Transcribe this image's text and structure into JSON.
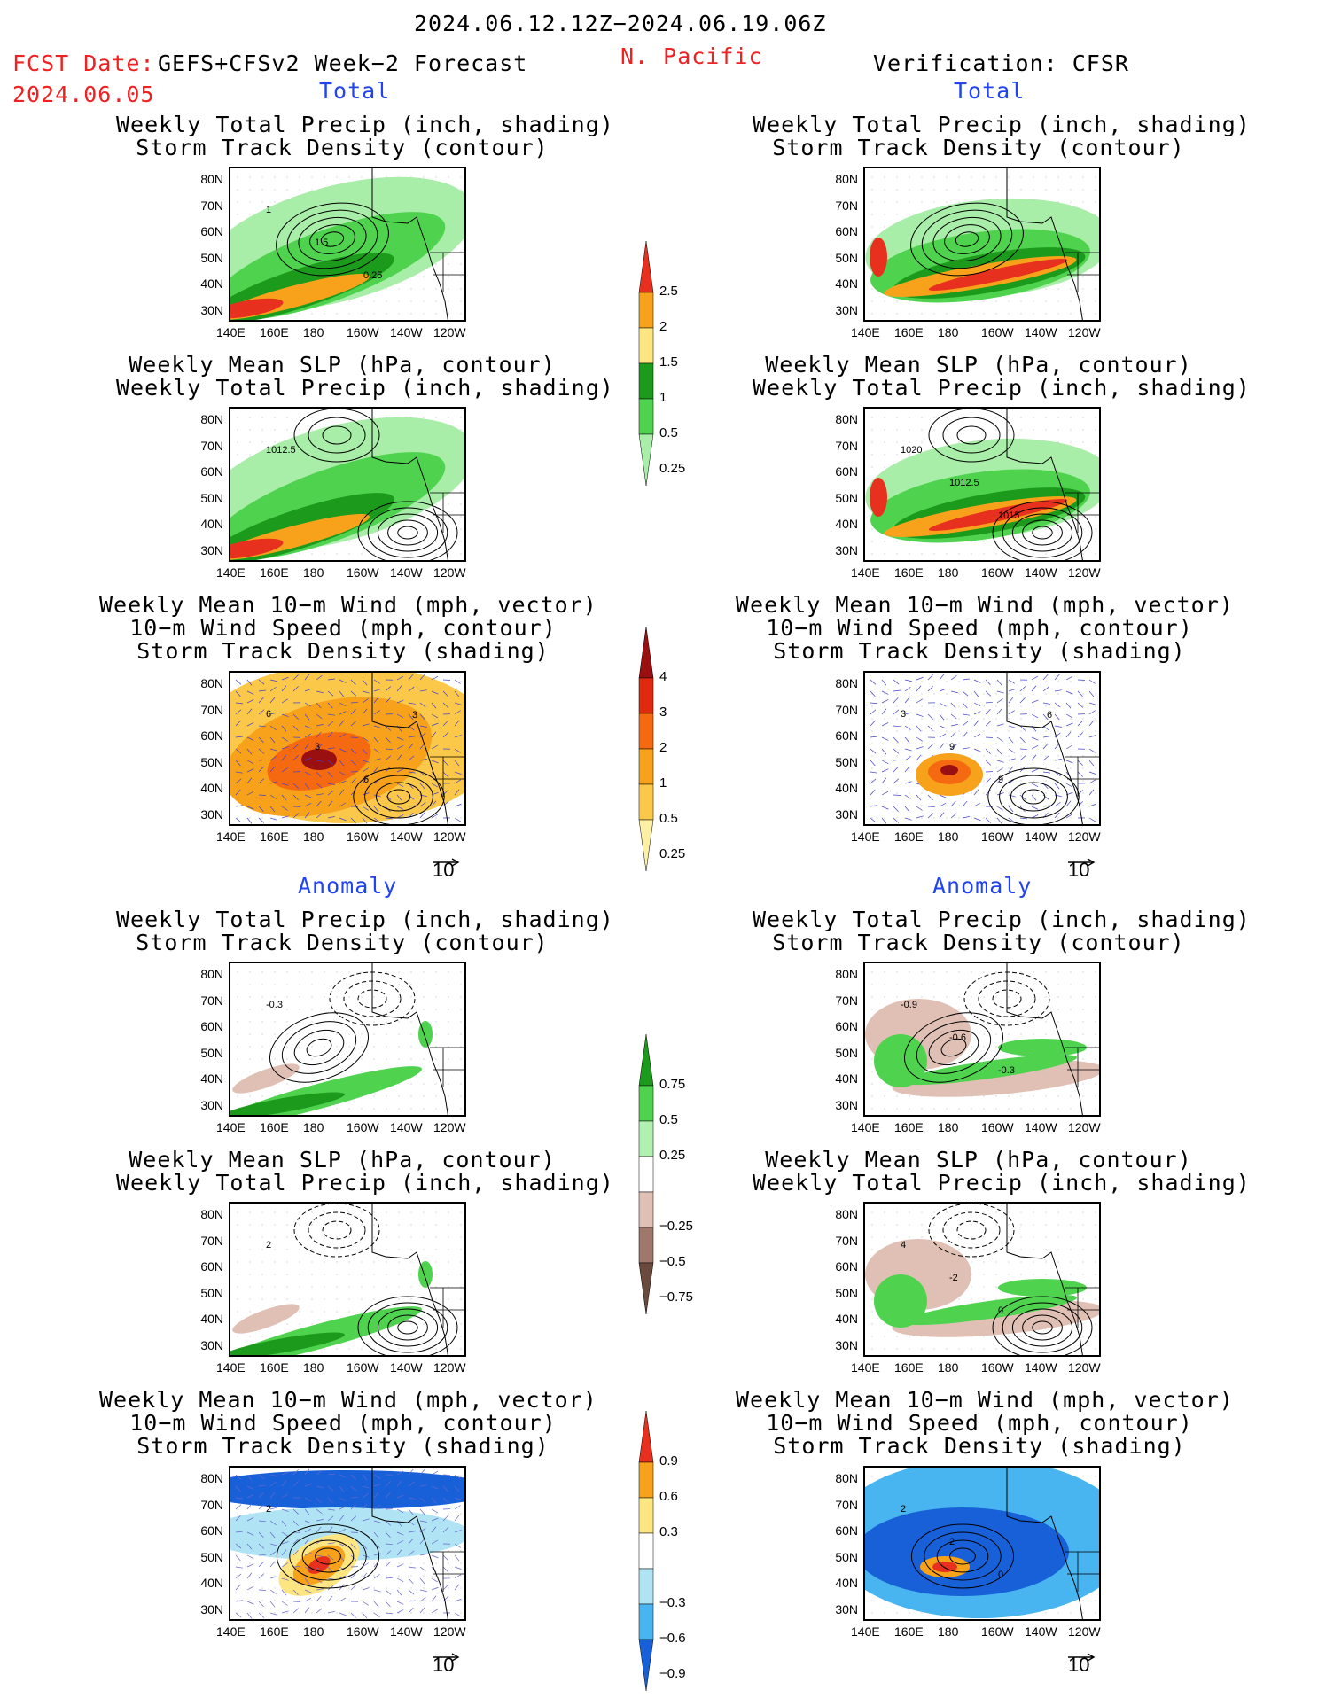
{
  "header": {
    "period": "2024.06.12.12Z−2024.06.19.06Z",
    "fcst_label": "FCST Date:",
    "fcst_date": "2024.06.05",
    "model": "GEFS+CFSv2 Week−2 Forecast",
    "region": "N. Pacific",
    "verification": "Verification: CFSR"
  },
  "sections": {
    "total": "Total",
    "anomaly": "Anomaly"
  },
  "titles": {
    "precip_track": [
      "Weekly Total Precip (inch, shading)",
      "Storm Track Density (contour)"
    ],
    "slp_precip": [
      "Weekly Mean SLP (hPa, contour)",
      "Weekly Total Precip (inch, shading)"
    ],
    "wind_track": [
      "Weekly Mean 10−m Wind (mph, vector)",
      "10−m Wind Speed (mph, contour)",
      "Storm Track Density (shading)"
    ]
  },
  "axes": {
    "lat_labels": [
      "80N",
      "70N",
      "60N",
      "50N",
      "40N",
      "30N"
    ],
    "lon_labels": [
      "140E",
      "160E",
      "180",
      "160W",
      "140W",
      "120W"
    ]
  },
  "vector_scale": "10",
  "contour_labels": {
    "fc_precip_track": [
      "1",
      "1.5",
      "0.25"
    ],
    "fc_slp": [
      "1012.5"
    ],
    "fc_wind_total": [
      "6",
      "3",
      "6",
      "3"
    ],
    "obs_slp": [
      "1020",
      "1012.5",
      "1015"
    ],
    "obs_wind_total": [
      "3",
      "9",
      "9",
      "6"
    ],
    "fc_precip_anom": [
      "-0.3"
    ],
    "obs_precip_anom": [
      "-0.9",
      "-0.6",
      "-0.3"
    ],
    "fc_slp_anom": [
      "2"
    ],
    "obs_slp_anom": [
      "4",
      "-2",
      "0"
    ],
    "fc_wind_anom": [
      "2"
    ],
    "obs_wind_anom": [
      "2",
      "2",
      "0"
    ]
  },
  "colorbars": {
    "precip": {
      "labels": [
        "2.5",
        "2",
        "1.5",
        "1",
        "0.5",
        "0.25"
      ],
      "colors": [
        "#e8301e",
        "#f7a21a",
        "#fde582",
        "#1c9a1c",
        "#4fd34f",
        "#a8eda8"
      ]
    },
    "storm_density": {
      "labels": [
        "4",
        "3",
        "2",
        "1",
        "0.5",
        "0.25"
      ],
      "colors": [
        "#9a1010",
        "#e02a10",
        "#f56a10",
        "#f7a21a",
        "#fbc84a",
        "#fdf0a4"
      ]
    },
    "precip_anom": {
      "labels": [
        "0.75",
        "0.5",
        "0.25",
        "−0.25",
        "−0.5",
        "−0.75"
      ],
      "colors": [
        "#1c9a1c",
        "#4fd34f",
        "#b0f0b0",
        "#ffffff",
        "#e0c0b4",
        "#a0786a",
        "#6a4a3c"
      ]
    },
    "storm_anom": {
      "labels": [
        "0.9",
        "0.6",
        "0.3",
        "−0.3",
        "−0.6",
        "−0.9"
      ],
      "colors": [
        "#e8301e",
        "#f7a21a",
        "#fde582",
        "#ffffff",
        "#b0e4f4",
        "#48b4f0",
        "#1860d8"
      ]
    }
  }
}
